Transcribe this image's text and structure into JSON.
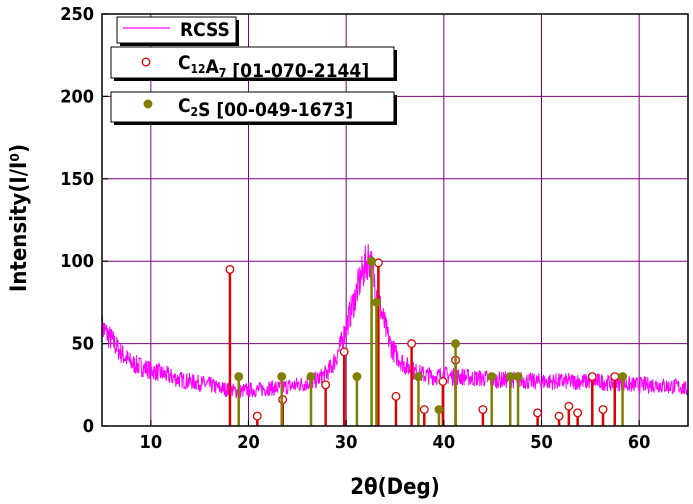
{
  "chart_data": {
    "type": "line",
    "xlabel": "2θ(Deg)",
    "ylabel": "Intensity(I/I⁰)",
    "xlim": [
      5,
      65
    ],
    "ylim": [
      0,
      250
    ],
    "xticks": [
      "10",
      "20",
      "30",
      "40",
      "50",
      "60"
    ],
    "yticks": [
      "0",
      "50",
      "100",
      "150",
      "200",
      "250"
    ],
    "grid": true,
    "legend_position": "top-left",
    "series": [
      {
        "name": "RCSS",
        "kind": "line",
        "color": "#ff00ff",
        "x": [
          5.0,
          6,
          7,
          8,
          9,
          10,
          11,
          12,
          13,
          14,
          15,
          16,
          17,
          18,
          19,
          20,
          21,
          22,
          23,
          24,
          25,
          26,
          27,
          28,
          28.5,
          29,
          29.5,
          30,
          30.5,
          31,
          31.5,
          32,
          32.3,
          32.6,
          33,
          33.5,
          34,
          34.5,
          35,
          36,
          37,
          38,
          39,
          40,
          41,
          42,
          43,
          44,
          45,
          46,
          47,
          48,
          49,
          50,
          51,
          52,
          53,
          54,
          55,
          56,
          57,
          58,
          59,
          60,
          61,
          62,
          63,
          64,
          65
        ],
        "y": [
          60,
          52,
          44,
          38,
          36,
          34,
          32,
          30,
          28,
          27,
          26,
          25,
          23,
          22,
          21,
          22,
          22,
          23,
          23,
          24,
          25,
          26,
          28,
          32,
          36,
          42,
          50,
          60,
          70,
          80,
          90,
          98,
          103,
          96,
          85,
          72,
          60,
          50,
          44,
          37,
          33,
          31,
          30,
          31,
          30,
          30,
          29,
          29,
          28,
          28,
          28,
          28,
          27,
          27,
          27,
          27,
          27,
          27,
          27,
          27,
          26,
          26,
          25,
          25,
          25,
          25,
          24,
          24,
          22
        ]
      },
      {
        "name": "C12A7 [01-070-2144]",
        "kind": "stick",
        "color": "#dd0000",
        "marker": "open-circle",
        "x": [
          18.1,
          20.9,
          23.5,
          27.9,
          29.8,
          33.3,
          35.1,
          36.7,
          38.0,
          39.9,
          41.2,
          44.0,
          49.6,
          51.8,
          52.8,
          53.7,
          55.2,
          56.3,
          57.5
        ],
        "y": [
          95,
          6,
          16,
          25,
          45,
          99,
          18,
          50,
          10,
          27,
          40,
          10,
          8,
          6,
          12,
          8,
          30,
          10,
          30
        ]
      },
      {
        "name": "C2S [00-049-1673]",
        "kind": "stick",
        "color": "#808000",
        "marker": "filled-circle",
        "x": [
          19.0,
          23.4,
          26.4,
          31.1,
          32.6,
          33.1,
          37.4,
          39.5,
          41.2,
          44.9,
          46.8,
          47.6,
          58.3
        ],
        "y": [
          30,
          30,
          30,
          30,
          100,
          75,
          30,
          10,
          50,
          30,
          30,
          30,
          30
        ]
      }
    ]
  }
}
